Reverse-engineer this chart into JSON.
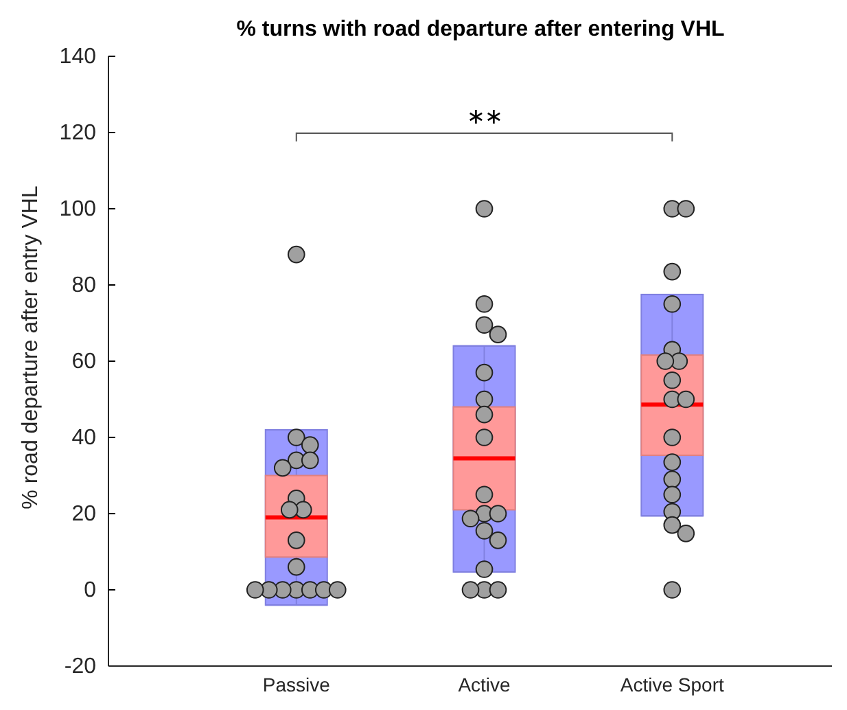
{
  "chart_data": {
    "type": "box",
    "title": "% turns with road departure after entering VHL",
    "ylabel": "% road departure after entry VHL",
    "categories": [
      "Passive",
      "Active",
      "Active Sport"
    ],
    "ylim": [
      -20,
      140
    ],
    "yticks": [
      -20,
      0,
      20,
      40,
      60,
      80,
      100,
      120,
      140
    ],
    "grid": false,
    "boxes": [
      {
        "low": -4,
        "q1": 8.6,
        "median": 19,
        "q3": 30,
        "high": 42
      },
      {
        "low": 4.7,
        "q1": 21,
        "median": 34.5,
        "q3": 48,
        "high": 64
      },
      {
        "low": 19.4,
        "q1": 35.3,
        "median": 48.6,
        "q3": 61.6,
        "high": 77.5
      }
    ],
    "colors": [
      "#ff9999",
      "#ff9999",
      "#ff9999"
    ],
    "series": [
      {
        "type": "scatter",
        "color": "#a0a0a0",
        "marker": "circle",
        "x": [
          "Passive",
          "Passive",
          "Passive",
          "Passive",
          "Passive",
          "Passive",
          "Passive",
          "Passive",
          "Passive",
          "Passive",
          "Passive",
          "Passive",
          "Passive",
          "Passive",
          "Passive",
          "Passive",
          "Passive",
          "Passive",
          "Active",
          "Active",
          "Active",
          "Active",
          "Active",
          "Active",
          "Active",
          "Active",
          "Active",
          "Active",
          "Active",
          "Active",
          "Active",
          "Active",
          "Active",
          "Active",
          "Active",
          "Active",
          "Active Sport",
          "Active Sport",
          "Active Sport",
          "Active Sport",
          "Active Sport",
          "Active Sport",
          "Active Sport",
          "Active Sport",
          "Active Sport",
          "Active Sport",
          "Active Sport",
          "Active Sport",
          "Active Sport",
          "Active Sport",
          "Active Sport",
          "Active Sport",
          "Active Sport",
          "Active Sport"
        ],
        "values": [
          88,
          40,
          38,
          34,
          34,
          32,
          24,
          21,
          21,
          13,
          6,
          0,
          0,
          0,
          0,
          0,
          0,
          0,
          100,
          75,
          69.5,
          67,
          57,
          50,
          46,
          40,
          25,
          20,
          20,
          18.7,
          15.5,
          13,
          5.4,
          0,
          0,
          0,
          100,
          100,
          83.5,
          75,
          63,
          60,
          60,
          55,
          50,
          50,
          40,
          33.5,
          29,
          25,
          20.5,
          17,
          14.8,
          0
        ]
      }
    ],
    "annotations": [
      "∗∗"
    ]
  }
}
